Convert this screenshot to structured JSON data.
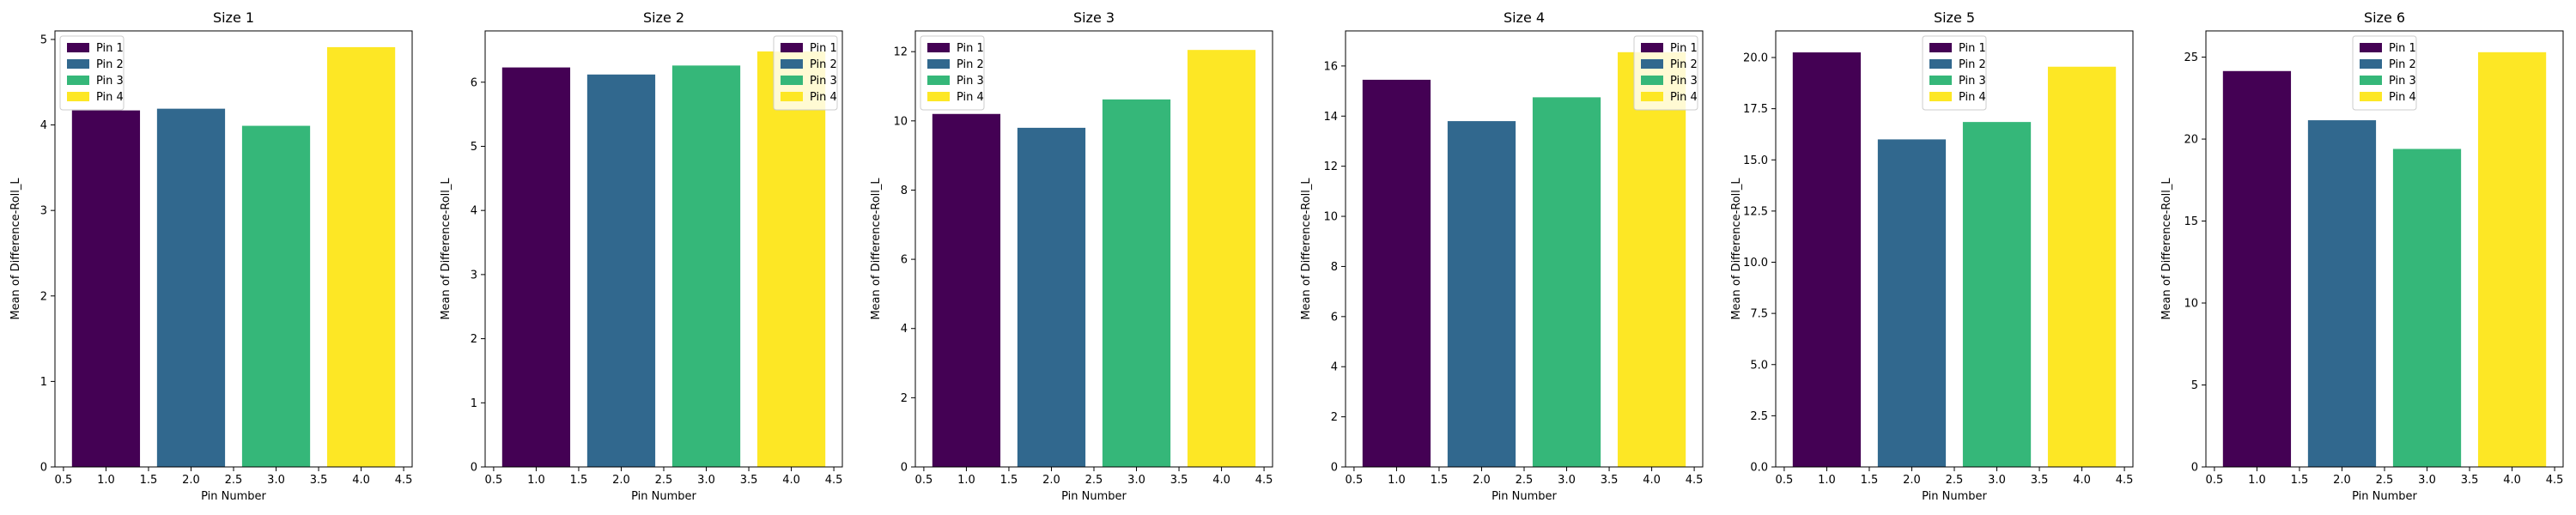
{
  "chart_data": [
    {
      "type": "bar",
      "title": "Size 1",
      "xlabel": "Pin Number",
      "ylabel": "Mean of Difference-Roll_L",
      "x": [
        1,
        2,
        3,
        4
      ],
      "values": [
        4.17,
        4.19,
        3.99,
        4.91
      ],
      "xlim": [
        0.4,
        4.6
      ],
      "ylim": [
        0,
        5.1
      ],
      "xticks": [
        0.5,
        1.0,
        1.5,
        2.0,
        2.5,
        3.0,
        3.5,
        4.0,
        4.5
      ],
      "yticks": [
        0,
        1,
        2,
        3,
        4,
        5
      ],
      "legend": [
        "Pin 1",
        "Pin 2",
        "Pin 3",
        "Pin 4"
      ],
      "legend_position": "top-left"
    },
    {
      "type": "bar",
      "title": "Size 2",
      "xlabel": "Pin Number",
      "ylabel": "Mean of Difference-Roll_L",
      "x": [
        1,
        2,
        3,
        4
      ],
      "values": [
        6.23,
        6.12,
        6.26,
        6.48
      ],
      "xlim": [
        0.4,
        4.6
      ],
      "ylim": [
        0,
        6.8
      ],
      "xticks": [
        0.5,
        1.0,
        1.5,
        2.0,
        2.5,
        3.0,
        3.5,
        4.0,
        4.5
      ],
      "yticks": [
        0,
        1,
        2,
        3,
        4,
        5,
        6
      ],
      "legend": [
        "Pin 1",
        "Pin 2",
        "Pin 3",
        "Pin 4"
      ],
      "legend_position": "top-right"
    },
    {
      "type": "bar",
      "title": "Size 3",
      "xlabel": "Pin Number",
      "ylabel": "Mean of Difference-Roll_L",
      "x": [
        1,
        2,
        3,
        4
      ],
      "values": [
        10.2,
        9.8,
        10.62,
        12.05
      ],
      "xlim": [
        0.4,
        4.6
      ],
      "ylim": [
        0,
        12.6
      ],
      "xticks": [
        0.5,
        1.0,
        1.5,
        2.0,
        2.5,
        3.0,
        3.5,
        4.0,
        4.5
      ],
      "yticks": [
        0,
        2,
        4,
        6,
        8,
        10,
        12
      ],
      "legend": [
        "Pin 1",
        "Pin 2",
        "Pin 3",
        "Pin 4"
      ],
      "legend_position": "top-left"
    },
    {
      "type": "bar",
      "title": "Size 4",
      "xlabel": "Pin Number",
      "ylabel": "Mean of Difference-Roll_L",
      "x": [
        1,
        2,
        3,
        4
      ],
      "values": [
        15.45,
        13.8,
        14.75,
        16.55
      ],
      "xlim": [
        0.4,
        4.6
      ],
      "ylim": [
        0,
        17.4
      ],
      "xticks": [
        0.5,
        1.0,
        1.5,
        2.0,
        2.5,
        3.0,
        3.5,
        4.0,
        4.5
      ],
      "yticks": [
        0,
        2,
        4,
        6,
        8,
        10,
        12,
        14,
        16
      ],
      "legend": [
        "Pin 1",
        "Pin 2",
        "Pin 3",
        "Pin 4"
      ],
      "legend_position": "top-right"
    },
    {
      "type": "bar",
      "title": "Size 5",
      "xlabel": "Pin Number",
      "ylabel": "Mean of Difference-Roll_L",
      "x": [
        1,
        2,
        3,
        4
      ],
      "values": [
        20.25,
        16.0,
        16.85,
        19.55
      ],
      "xlim": [
        0.4,
        4.6
      ],
      "ylim": [
        0,
        21.3
      ],
      "xticks": [
        0.5,
        1.0,
        1.5,
        2.0,
        2.5,
        3.0,
        3.5,
        4.0,
        4.5
      ],
      "yticks": [
        0.0,
        2.5,
        5.0,
        7.5,
        10.0,
        12.5,
        15.0,
        17.5,
        20.0
      ],
      "legend": [
        "Pin 1",
        "Pin 2",
        "Pin 3",
        "Pin 4"
      ],
      "legend_position": "top-center"
    },
    {
      "type": "bar",
      "title": "Size 6",
      "xlabel": "Pin Number",
      "ylabel": "Mean of Difference-Roll_L",
      "x": [
        1,
        2,
        3,
        4
      ],
      "values": [
        24.15,
        21.15,
        19.4,
        25.3
      ],
      "xlim": [
        0.4,
        4.6
      ],
      "ylim": [
        0,
        26.6
      ],
      "xticks": [
        0.5,
        1.0,
        1.5,
        2.0,
        2.5,
        3.0,
        3.5,
        4.0,
        4.5
      ],
      "yticks": [
        0,
        5,
        10,
        15,
        20,
        25
      ],
      "legend": [
        "Pin 1",
        "Pin 2",
        "Pin 3",
        "Pin 4"
      ],
      "legend_position": "top-center"
    }
  ],
  "colors": [
    "#440154",
    "#31688e",
    "#35b779",
    "#fde725"
  ]
}
